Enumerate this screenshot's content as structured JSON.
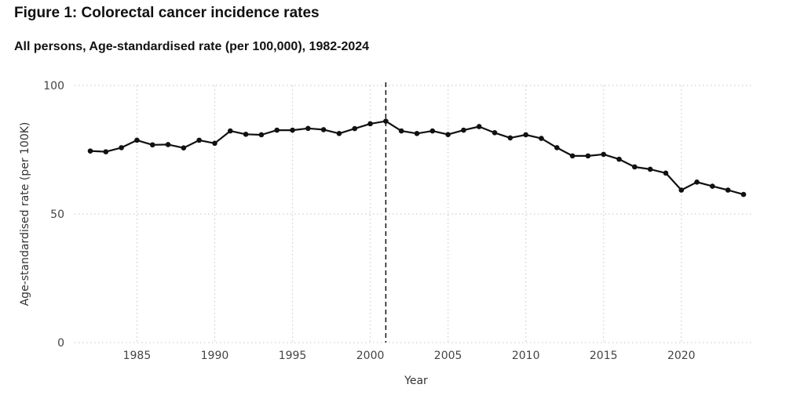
{
  "chart_data": {
    "type": "line",
    "title": "Figure 1: Colorectal cancer incidence rates",
    "subtitle": "All persons, Age-standardised rate (per 100,000), 1982-2024",
    "xlabel": "Year",
    "ylabel": "Age-standardised rate (per 100K)",
    "xlim": [
      1982,
      2024
    ],
    "ylim": [
      0,
      100
    ],
    "x_ticks": [
      1985,
      1990,
      1995,
      2000,
      2005,
      2010,
      2015,
      2020
    ],
    "y_ticks": [
      0,
      50,
      100
    ],
    "grid": true,
    "reference_line": {
      "x": 2001,
      "style": "dashed"
    },
    "series": [
      {
        "x": [
          1982,
          1983,
          1984,
          1985,
          1986,
          1987,
          1988,
          1989,
          1990,
          1991,
          1992,
          1993,
          1994,
          1995,
          1996,
          1997,
          1998,
          1999,
          2000,
          2001,
          2002,
          2003,
          2004,
          2005,
          2006,
          2007,
          2008,
          2009,
          2010,
          2011,
          2012,
          2013,
          2014,
          2015,
          2016,
          2017,
          2018,
          2019,
          2020,
          2021,
          2022,
          2023,
          2024
        ],
        "values": [
          74.5,
          74.2,
          75.8,
          78.7,
          76.9,
          77.0,
          75.7,
          78.7,
          77.5,
          82.3,
          81.0,
          80.8,
          82.6,
          82.6,
          83.3,
          82.8,
          81.3,
          83.2,
          85.1,
          86.1,
          82.3,
          81.3,
          82.3,
          80.9,
          82.6,
          84.0,
          81.6,
          79.6,
          80.8,
          79.4,
          75.8,
          72.6,
          72.6,
          73.2,
          71.3,
          68.3,
          67.4,
          65.9,
          59.3,
          62.4,
          60.8,
          59.3,
          57.6
        ]
      }
    ],
    "colors": {
      "line": "#111111",
      "grid": "#cfcfcf",
      "reference": "#111111"
    }
  }
}
